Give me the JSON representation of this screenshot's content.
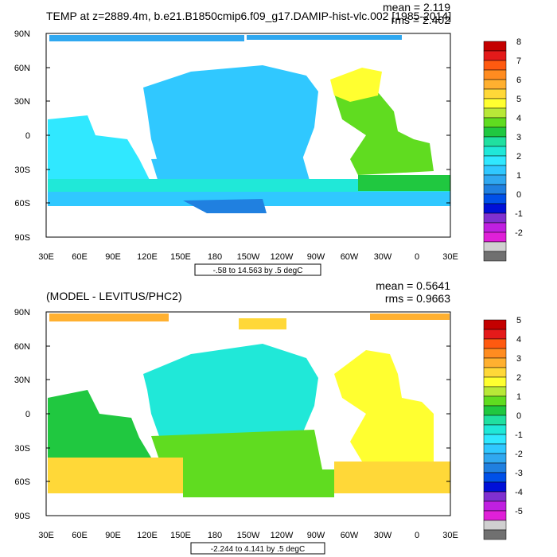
{
  "top": {
    "title": "TEMP at z=2889.4m, b.e21.B1850cmip6.f09_g17.DAMIP-hist-vlc.002 [1985-2014]",
    "mean": "mean = 2.119",
    "rms": "rms = 2.402",
    "yticks": [
      "90N",
      "60N",
      "30N",
      "0",
      "30S",
      "60S",
      "90S"
    ],
    "xticks": [
      "30E",
      "60E",
      "90E",
      "120E",
      "150E",
      "180",
      "150W",
      "120W",
      "90W",
      "60W",
      "30W",
      "0",
      "30E"
    ],
    "range": "-.58 to 14.563 by .5 degC",
    "colorbar": {
      "labels": [
        "8",
        "7",
        "6",
        "5",
        "4",
        "3",
        "2",
        "1",
        "0",
        "-1",
        "-2"
      ],
      "colors": [
        "#c40000",
        "#e41a1a",
        "#ff5a10",
        "#ff8c20",
        "#ffb030",
        "#ffd838",
        "#ffff30",
        "#b8e838",
        "#60dc20",
        "#20c840",
        "#20e0a0",
        "#20e8d8",
        "#30e8ff",
        "#30c8ff",
        "#30a8f0",
        "#2080e0",
        "#0050e8",
        "#0010d8",
        "#8030d0",
        "#c020e0",
        "#e020d8",
        "#d0d0d0",
        "#707070"
      ]
    }
  },
  "bottom": {
    "title": "(MODEL - LEVITUS/PHC2)",
    "mean": "mean = 0.5641",
    "rms": "rms = 0.9663",
    "yticks": [
      "90N",
      "60N",
      "30N",
      "0",
      "30S",
      "60S",
      "90S"
    ],
    "xticks": [
      "30E",
      "60E",
      "90E",
      "120E",
      "150E",
      "180",
      "150W",
      "120W",
      "90W",
      "60W",
      "30W",
      "0",
      "30E"
    ],
    "range": "-2.244 to 4.141 by .5 degC",
    "colorbar": {
      "labels": [
        "5",
        "4",
        "3",
        "2",
        "1",
        "0",
        "-1",
        "-2",
        "-3",
        "-4",
        "-5"
      ],
      "colors": [
        "#c40000",
        "#e41a1a",
        "#ff5a10",
        "#ff8c20",
        "#ffb030",
        "#ffd838",
        "#ffff30",
        "#b8e838",
        "#60dc20",
        "#20c840",
        "#20e0a0",
        "#20e8d8",
        "#30e8ff",
        "#30c8ff",
        "#30a8f0",
        "#2080e0",
        "#0050e8",
        "#0010d8",
        "#8030d0",
        "#c020e0",
        "#e020d8",
        "#d0d0d0",
        "#707070"
      ]
    }
  }
}
